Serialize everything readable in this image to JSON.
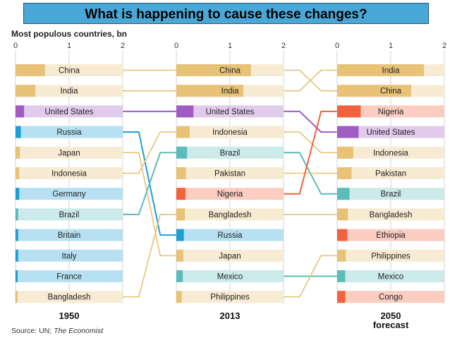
{
  "banner": {
    "title": "What is happening to cause these changes?"
  },
  "chart_data": {
    "type": "bar",
    "title": "Most populous countries, bn",
    "source_prefix": "Source: UN; ",
    "source_italic": "The Economist",
    "axis_ticks": [
      "0",
      "1",
      "2"
    ],
    "xlim": [
      0,
      2
    ],
    "colors": {
      "China": "#e8c276",
      "India": "#e8c276",
      "Indonesia": "#e8c276",
      "Japan": "#e8c276",
      "Pakistan": "#e8c276",
      "Bangladesh": "#e8c276",
      "Philippines": "#e8c276",
      "United States": "#a15cc4",
      "Russia": "#1ea0d5",
      "Germany": "#1ea0d5",
      "Britain": "#1ea0d5",
      "Italy": "#1ea0d5",
      "France": "#1ea0d5",
      "Brazil": "#5bbcb9",
      "Mexico": "#5bbcb9",
      "Nigeria": "#f2623c",
      "Ethiopia": "#f2623c",
      "Congo": "#f2623c"
    },
    "panels": [
      {
        "year": "1950",
        "subtitle": "",
        "series": [
          {
            "name": "China",
            "value": 0.55
          },
          {
            "name": "India",
            "value": 0.37
          },
          {
            "name": "United States",
            "value": 0.16
          },
          {
            "name": "Russia",
            "value": 0.1
          },
          {
            "name": "Japan",
            "value": 0.08
          },
          {
            "name": "Indonesia",
            "value": 0.07
          },
          {
            "name": "Germany",
            "value": 0.07
          },
          {
            "name": "Brazil",
            "value": 0.05
          },
          {
            "name": "Britain",
            "value": 0.05
          },
          {
            "name": "Italy",
            "value": 0.05
          },
          {
            "name": "France",
            "value": 0.04
          },
          {
            "name": "Bangladesh",
            "value": 0.04
          }
        ]
      },
      {
        "year": "2013",
        "subtitle": "",
        "series": [
          {
            "name": "China",
            "value": 1.39
          },
          {
            "name": "India",
            "value": 1.25
          },
          {
            "name": "United States",
            "value": 0.32
          },
          {
            "name": "Indonesia",
            "value": 0.25
          },
          {
            "name": "Brazil",
            "value": 0.2
          },
          {
            "name": "Pakistan",
            "value": 0.18
          },
          {
            "name": "Nigeria",
            "value": 0.17
          },
          {
            "name": "Bangladesh",
            "value": 0.16
          },
          {
            "name": "Russia",
            "value": 0.14
          },
          {
            "name": "Japan",
            "value": 0.13
          },
          {
            "name": "Mexico",
            "value": 0.12
          },
          {
            "name": "Philippines",
            "value": 0.1
          }
        ]
      },
      {
        "year": "2050",
        "subtitle": "forecast",
        "series": [
          {
            "name": "India",
            "value": 1.62
          },
          {
            "name": "China",
            "value": 1.38
          },
          {
            "name": "Nigeria",
            "value": 0.44
          },
          {
            "name": "United States",
            "value": 0.4
          },
          {
            "name": "Indonesia",
            "value": 0.3
          },
          {
            "name": "Pakistan",
            "value": 0.27
          },
          {
            "name": "Brazil",
            "value": 0.23
          },
          {
            "name": "Bangladesh",
            "value": 0.2
          },
          {
            "name": "Ethiopia",
            "value": 0.19
          },
          {
            "name": "Philippines",
            "value": 0.16
          },
          {
            "name": "Mexico",
            "value": 0.15
          },
          {
            "name": "Congo",
            "value": 0.15
          }
        ]
      }
    ]
  }
}
